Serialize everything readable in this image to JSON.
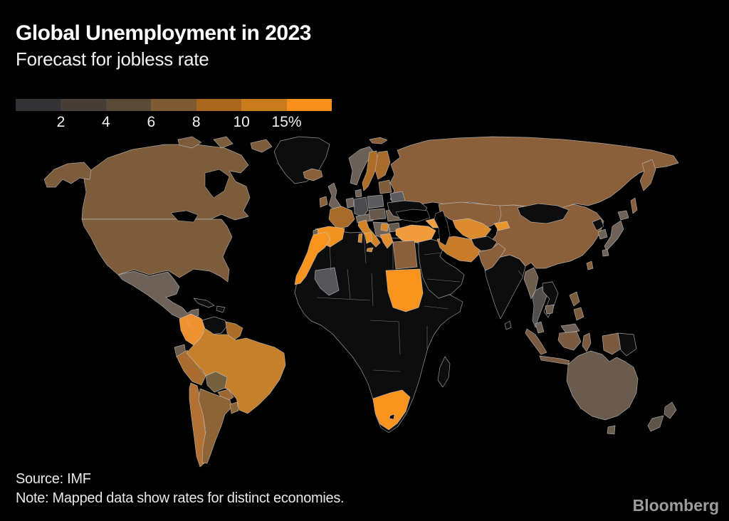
{
  "header": {
    "title": "Global Unemployment in 2023",
    "subtitle": "Forecast for jobless rate"
  },
  "footer": {
    "source": "Source: IMF",
    "note": "Note: Mapped data show rates for distinct economies.",
    "brand": "Bloomberg"
  },
  "colors": {
    "background": "#000000",
    "title_text": "#ffffff",
    "footer_text": "#e8e8e8",
    "brand_text": "#9c9c9c",
    "border": "#c9c9c9",
    "no_data": "#0d0d0d"
  },
  "chart_data": {
    "type": "heatmap",
    "subtype": "world-choropleth",
    "title": "Global Unemployment in 2023",
    "subtitle": "Forecast for jobless rate",
    "unit": "percent (forecast jobless rate)",
    "legend": {
      "position": "top-left",
      "tick_labels": [
        "2",
        "4",
        "6",
        "8",
        "10",
        "15%"
      ],
      "colors": [
        "#333336",
        "#473f37",
        "#5a4b38",
        "#7d5c33",
        "#a8661f",
        "#c87c1e",
        "#f8901d"
      ]
    },
    "source": "Source: IMF",
    "note": "Note: Mapped data show rates for distinct economies.",
    "regions": [
      {
        "id": "africa-base",
        "name": "Africa (most economies)",
        "band": "no data",
        "fill": "#0d0d0d"
      },
      {
        "id": "madagascar",
        "name": "Madagascar",
        "band": "no data",
        "fill": "#0d0d0d"
      },
      {
        "id": "middle-east",
        "name": "Arabian Peninsula and Levant",
        "band": "no data",
        "fill": "#0d0d0d"
      },
      {
        "id": "india",
        "name": "India",
        "band": "no data",
        "fill": "#0d0d0d"
      },
      {
        "id": "sri-lanka",
        "name": "Sri Lanka",
        "band": "no data",
        "fill": "#0d0d0d"
      },
      {
        "id": "russia",
        "name": "Russia",
        "band": "6-8",
        "fill": "#8a5f3a"
      },
      {
        "id": "kazakhstan",
        "name": "Kazakhstan",
        "band": "6-8",
        "fill": "#8a5f3a"
      },
      {
        "id": "china",
        "name": "China",
        "band": "6-8",
        "fill": "#8a5f3a"
      },
      {
        "id": "mongolia",
        "name": "Mongolia",
        "band": "no data",
        "fill": "#0d0d0d"
      },
      {
        "id": "taiwan",
        "name": "Taiwan",
        "band": "6-8",
        "fill": "#8a5f3a"
      },
      {
        "id": "greenland",
        "name": "Greenland",
        "band": "no data",
        "fill": "#0d0d0d"
      },
      {
        "id": "canada",
        "name": "Canada",
        "band": "6-8",
        "fill": "#7d5c3b"
      },
      {
        "id": "usa",
        "name": "United States",
        "band": "6-8",
        "fill": "#7d5c3b"
      },
      {
        "id": "mexico",
        "name": "Mexico",
        "band": "4-6",
        "fill": "#6e6157"
      },
      {
        "id": "central-america",
        "name": "Central America",
        "band": "no data",
        "fill": "#0d0d0d"
      },
      {
        "id": "caribbean",
        "name": "Caribbean",
        "band": "no data",
        "fill": "#0d0d0d"
      },
      {
        "id": "colombia",
        "name": "Colombia",
        "band": "15+",
        "fill": "#ef9130"
      },
      {
        "id": "venezuela",
        "name": "Venezuela",
        "band": "no data",
        "fill": "#0d0d0d"
      },
      {
        "id": "guyanas",
        "name": "Guyana and Suriname",
        "band": "8-10",
        "fill": "#ad6c28"
      },
      {
        "id": "ecuador",
        "name": "Ecuador",
        "band": "4-6",
        "fill": "#6e5c4c"
      },
      {
        "id": "peru",
        "name": "Peru",
        "band": "8-10",
        "fill": "#a96d2f"
      },
      {
        "id": "brazil",
        "name": "Brazil",
        "band": "10-15",
        "fill": "#c67f2b"
      },
      {
        "id": "bolivia",
        "name": "Bolivia",
        "band": "6-8",
        "fill": "#75603f"
      },
      {
        "id": "paraguay",
        "name": "Paraguay",
        "band": "6-8",
        "fill": "#9c6832"
      },
      {
        "id": "chile",
        "name": "Chile",
        "band": "8-10",
        "fill": "#b37234"
      },
      {
        "id": "argentina",
        "name": "Argentina",
        "band": "6-8",
        "fill": "#8d6435"
      },
      {
        "id": "uruguay",
        "name": "Uruguay",
        "band": "6-8",
        "fill": "#8d6435"
      },
      {
        "id": "iceland",
        "name": "Iceland",
        "band": "6-8",
        "fill": "#8a5f3a"
      },
      {
        "id": "ireland",
        "name": "Ireland",
        "band": "6-8",
        "fill": "#8a6138"
      },
      {
        "id": "uk",
        "name": "United Kingdom",
        "band": "4-6",
        "fill": "#6e6156"
      },
      {
        "id": "norway",
        "name": "Norway",
        "band": "4-6",
        "fill": "#6b6057"
      },
      {
        "id": "sweden",
        "name": "Sweden",
        "band": "8-10",
        "fill": "#ad6d27"
      },
      {
        "id": "finland",
        "name": "Finland",
        "band": "8-10",
        "fill": "#a86c2c"
      },
      {
        "id": "denmark",
        "name": "Denmark",
        "band": "4-6",
        "fill": "#6e6156"
      },
      {
        "id": "baltics",
        "name": "Baltic states",
        "band": "6-8",
        "fill": "#7d5c3b"
      },
      {
        "id": "belarus",
        "name": "Belarus",
        "band": "2-4",
        "fill": "#5c5c5e"
      },
      {
        "id": "poland",
        "name": "Poland",
        "band": "2-4",
        "fill": "#5c5c5e"
      },
      {
        "id": "germany",
        "name": "Germany",
        "band": "2-4",
        "fill": "#4b4b4d"
      },
      {
        "id": "benelux",
        "name": "Netherlands and Belgium",
        "band": "4-6",
        "fill": "#6e6156"
      },
      {
        "id": "france",
        "name": "France",
        "band": "8-10",
        "fill": "#a86a28"
      },
      {
        "id": "spain",
        "name": "Spain",
        "band": "15+",
        "fill": "#f2921f"
      },
      {
        "id": "portugal",
        "name": "Portugal",
        "band": "4-6",
        "fill": "#6b6057"
      },
      {
        "id": "alpine",
        "name": "Switzerland and Austria",
        "band": "4-6",
        "fill": "#6e6156"
      },
      {
        "id": "italy",
        "name": "Italy",
        "band": "10-15",
        "fill": "#d28427"
      },
      {
        "id": "czech-hungary",
        "name": "Czechia, Slovakia and Hungary",
        "band": "2-4",
        "fill": "#66584a"
      },
      {
        "id": "romania",
        "name": "Romania",
        "band": "4-6",
        "fill": "#6e5c4c"
      },
      {
        "id": "balkans",
        "name": "Western Balkans",
        "band": "4-6",
        "fill": "#6e6156"
      },
      {
        "id": "serbia",
        "name": "Serbia",
        "band": "10-15",
        "fill": "#d28427"
      },
      {
        "id": "bulgaria",
        "name": "Bulgaria",
        "band": "4-6",
        "fill": "#66584a"
      },
      {
        "id": "greece",
        "name": "Greece",
        "band": "10-15",
        "fill": "#e08e2e"
      },
      {
        "id": "ukraine",
        "name": "Ukraine",
        "band": "no data",
        "fill": "#0d0d0d"
      },
      {
        "id": "turkey",
        "name": "Turkey",
        "band": "10-15",
        "fill": "#f29b3d"
      },
      {
        "id": "cyprus",
        "name": "Cyprus",
        "band": "10-15",
        "fill": "#e8912a"
      },
      {
        "id": "caucasus",
        "name": "Georgia, Armenia and Azerbaijan",
        "band": "10-15",
        "fill": "#ef9e42"
      },
      {
        "id": "uzbek-turkmen",
        "name": "Uzbekistan and Turkmenistan",
        "band": "10-15",
        "fill": "#dc8c2e"
      },
      {
        "id": "kyrgyz",
        "name": "Kyrgyzstan",
        "band": "10-15",
        "fill": "#e8952e"
      },
      {
        "id": "iran",
        "name": "Iran",
        "band": "10-15",
        "fill": "#c87c2a"
      },
      {
        "id": "afghanistan",
        "name": "Afghanistan",
        "band": "no data",
        "fill": "#0d0d0d"
      },
      {
        "id": "pakistan",
        "name": "Pakistan",
        "band": "6-8",
        "fill": "#8a5f3a"
      },
      {
        "id": "myanmar",
        "name": "Myanmar",
        "band": "4-6",
        "fill": "#6e5c4c"
      },
      {
        "id": "thailand",
        "name": "Thailand",
        "band": "2-4",
        "fill": "#514e4b"
      },
      {
        "id": "vietnam-laos",
        "name": "Vietnam and Laos",
        "band": "no data",
        "fill": "#0d0d0d"
      },
      {
        "id": "cambodia",
        "name": "Cambodia",
        "band": "4-6",
        "fill": "#6e5c4c"
      },
      {
        "id": "malaysia",
        "name": "Malaysia",
        "band": "4-6",
        "fill": "#6e6156"
      },
      {
        "id": "indonesia",
        "name": "Indonesia",
        "band": "6-8",
        "fill": "#7a5a40"
      },
      {
        "id": "png",
        "name": "Papua New Guinea",
        "band": "no data",
        "fill": "#0d0d0d"
      },
      {
        "id": "philippines",
        "name": "Philippines",
        "band": "6-8",
        "fill": "#7d5c3b"
      },
      {
        "id": "north-korea",
        "name": "North Korea",
        "band": "no data",
        "fill": "#0d0d0d"
      },
      {
        "id": "south-korea",
        "name": "South Korea",
        "band": "4-6",
        "fill": "#6e6156"
      },
      {
        "id": "japan",
        "name": "Japan",
        "band": "4-6",
        "fill": "#6e6156"
      },
      {
        "id": "egypt",
        "name": "Egypt",
        "band": "6-8",
        "fill": "#8a5f3a"
      },
      {
        "id": "sudan",
        "name": "Sudan",
        "band": "15+",
        "fill": "#f8931d"
      },
      {
        "id": "morocco",
        "name": "Morocco and Western Sahara",
        "band": "15+",
        "fill": "#f8931d"
      },
      {
        "id": "tunisia",
        "name": "Tunisia",
        "band": "15+",
        "fill": "#e8912a"
      },
      {
        "id": "mali",
        "name": "Mali",
        "band": "2-4",
        "fill": "#55555a"
      },
      {
        "id": "south-africa",
        "name": "South Africa",
        "band": "15+",
        "fill": "#f8931d"
      },
      {
        "id": "lesotho",
        "name": "Lesotho",
        "band": "no data",
        "fill": "#0d0d0d"
      },
      {
        "id": "australia",
        "name": "Australia",
        "band": "4-6",
        "fill": "#6a5b4d"
      },
      {
        "id": "new-zealand",
        "name": "New Zealand",
        "band": "4-6",
        "fill": "#5e5548"
      }
    ]
  }
}
